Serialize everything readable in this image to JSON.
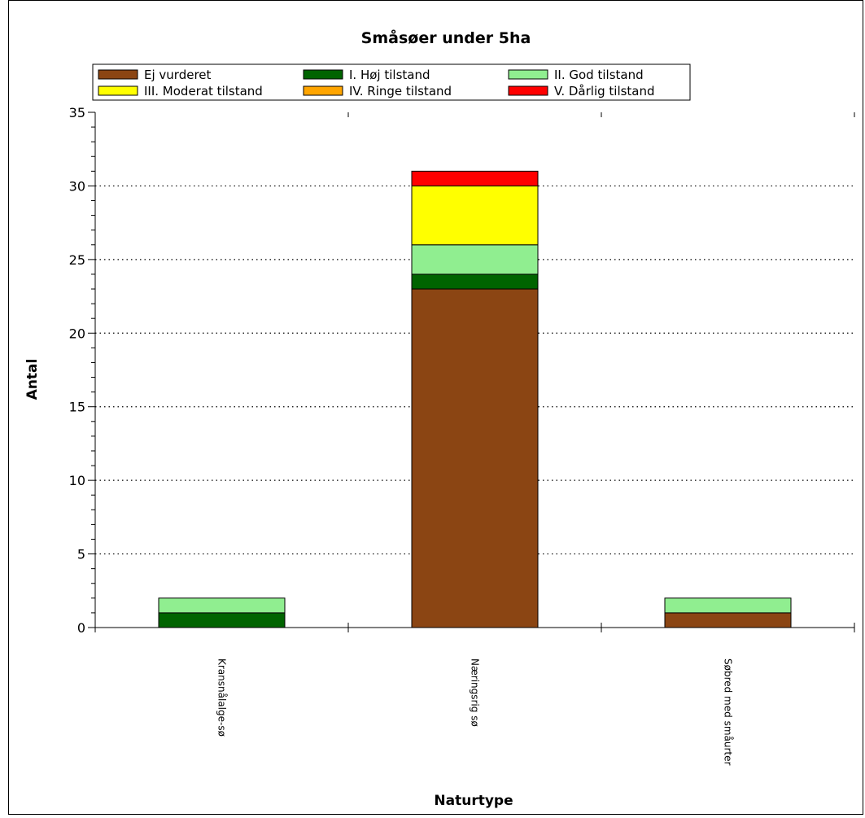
{
  "chart_data": {
    "type": "bar",
    "stacked": true,
    "title": "Småsøer under 5ha",
    "xlabel": "Naturtype",
    "ylabel": "Antal",
    "ylim": [
      0,
      35
    ],
    "yticks": [
      0,
      5,
      10,
      15,
      20,
      25,
      30,
      35
    ],
    "grid": true,
    "legend_position": "top",
    "categories": [
      "Kransnålalge-sø",
      "Næringsrig sø",
      "Søbred med småurter"
    ],
    "series": [
      {
        "name": "Ej vurderet",
        "color": "#8B4513",
        "values": [
          0,
          23,
          1
        ]
      },
      {
        "name": "I. Høj tilstand",
        "color": "#006400",
        "values": [
          1,
          1,
          0
        ]
      },
      {
        "name": "II. God tilstand",
        "color": "#90EE90",
        "values": [
          1,
          2,
          1
        ]
      },
      {
        "name": "III. Moderat tilstand",
        "color": "#FFFF00",
        "values": [
          0,
          4,
          0
        ]
      },
      {
        "name": "IV. Ringe tilstand",
        "color": "#FFA500",
        "values": [
          0,
          0,
          0
        ]
      },
      {
        "name": "V. Dårlig tilstand",
        "color": "#FF0000",
        "values": [
          0,
          1,
          0
        ]
      }
    ]
  }
}
